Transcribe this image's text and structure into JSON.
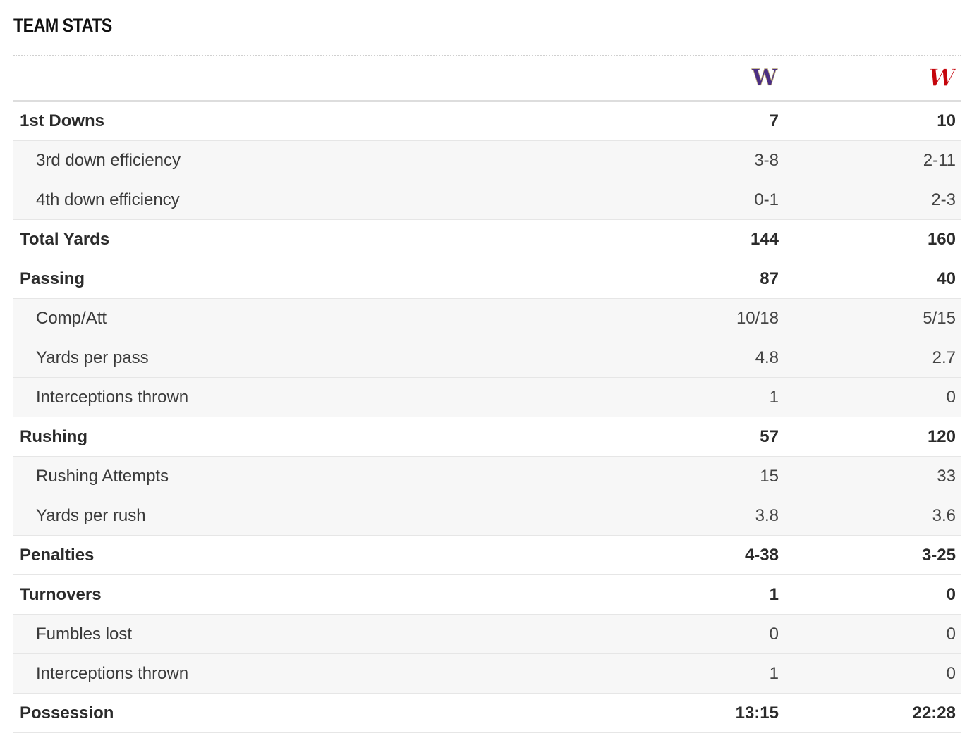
{
  "section": {
    "title": "TEAM STATS"
  },
  "teams": [
    {
      "logo": "washington-w-logo",
      "letter": "W",
      "color": "#4b2e83"
    },
    {
      "logo": "wisconsin-w-logo",
      "letter": "W",
      "color": "#c5050c"
    }
  ],
  "rows": [
    {
      "label": "1st Downs",
      "home": "7",
      "away": "10",
      "kind": "main"
    },
    {
      "label": "3rd down efficiency",
      "home": "3-8",
      "away": "2-11",
      "kind": "sub"
    },
    {
      "label": "4th down efficiency",
      "home": "0-1",
      "away": "2-3",
      "kind": "sub"
    },
    {
      "label": "Total Yards",
      "home": "144",
      "away": "160",
      "kind": "main"
    },
    {
      "label": "Passing",
      "home": "87",
      "away": "40",
      "kind": "main"
    },
    {
      "label": "Comp/Att",
      "home": "10/18",
      "away": "5/15",
      "kind": "sub"
    },
    {
      "label": "Yards per pass",
      "home": "4.8",
      "away": "2.7",
      "kind": "sub"
    },
    {
      "label": "Interceptions thrown",
      "home": "1",
      "away": "0",
      "kind": "sub"
    },
    {
      "label": "Rushing",
      "home": "57",
      "away": "120",
      "kind": "main"
    },
    {
      "label": "Rushing Attempts",
      "home": "15",
      "away": "33",
      "kind": "sub"
    },
    {
      "label": "Yards per rush",
      "home": "3.8",
      "away": "3.6",
      "kind": "sub"
    },
    {
      "label": "Penalties",
      "home": "4-38",
      "away": "3-25",
      "kind": "main"
    },
    {
      "label": "Turnovers",
      "home": "1",
      "away": "0",
      "kind": "main"
    },
    {
      "label": "Fumbles lost",
      "home": "0",
      "away": "0",
      "kind": "sub"
    },
    {
      "label": "Interceptions thrown",
      "home": "1",
      "away": "0",
      "kind": "sub"
    },
    {
      "label": "Possession",
      "home": "13:15",
      "away": "22:28",
      "kind": "main"
    }
  ]
}
